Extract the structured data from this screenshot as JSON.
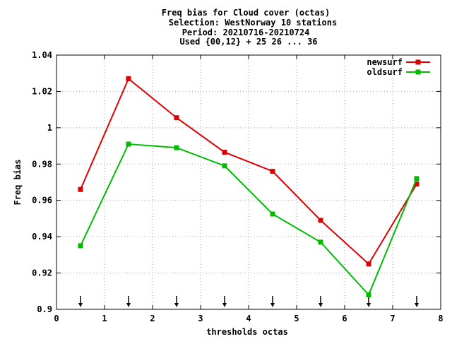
{
  "chart_data": {
    "type": "line",
    "title_lines": [
      "Freq bias  for Cloud cover (octas)",
      "Selection: WestNorway     10 stations",
      "Period: 20210716-20210724",
      "Used {00,12} + 25 26 ... 36"
    ],
    "xlabel": "thresholds octas",
    "ylabel": "Freq bias",
    "xlim": [
      0,
      8
    ],
    "ylim": [
      0.9,
      1.04
    ],
    "x_ticks": [
      0,
      1,
      2,
      3,
      4,
      5,
      6,
      7,
      8
    ],
    "x_tick_labels": [
      "0",
      "1",
      "2",
      "3",
      "4",
      "5",
      "6",
      "7",
      "8"
    ],
    "y_ticks": [
      0.9,
      0.92,
      0.94,
      0.96,
      0.98,
      1.0,
      1.02,
      1.04
    ],
    "y_tick_labels": [
      "0.9",
      "0.92",
      "0.94",
      "0.96",
      "0.98",
      "1",
      "1.02",
      "1.04"
    ],
    "grid": true,
    "legend_position": "top-right",
    "x": [
      0.5,
      1.5,
      2.5,
      3.5,
      4.5,
      5.5,
      6.5,
      7.5
    ],
    "series": [
      {
        "name": "newsurf",
        "color": "#dd0000",
        "values": [
          0.966,
          1.027,
          1.0055,
          0.9865,
          0.976,
          0.949,
          0.925,
          0.969
        ]
      },
      {
        "name": "oldsurf",
        "color": "#00bb00",
        "values": [
          0.935,
          0.991,
          0.989,
          0.979,
          0.9525,
          0.937,
          0.908,
          0.972
        ]
      }
    ],
    "arrow_markers_x": [
      0.5,
      1.5,
      2.5,
      3.5,
      4.5,
      5.5,
      6.5,
      7.5
    ]
  }
}
